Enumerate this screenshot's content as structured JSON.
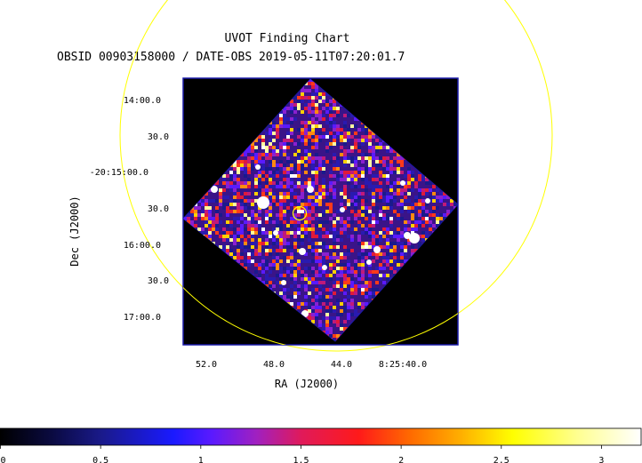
{
  "header": {
    "title": "UVOT Finding Chart",
    "subtitle": "OBSID 00903158000 / DATE-OBS 2019-05-11T07:20:01.7"
  },
  "axes": {
    "ra_label": "RA (J2000)",
    "dec_label": "Dec (J2000)",
    "ra_ticks": [
      "52.0",
      "48.0",
      "44.0",
      "8:25:40.0"
    ],
    "dec_ticks": [
      "14:00.0",
      "30.0",
      "-20:15:00.0",
      "30.0",
      "16:00.0",
      "30.0",
      "17:00.0"
    ]
  },
  "colorbar": {
    "ticks": [
      "0",
      "0.5",
      "1",
      "1.5",
      "2",
      "2.5",
      "3"
    ],
    "range": [
      0,
      3.2
    ]
  },
  "colors": {
    "field_border": "#1a1aa8",
    "overlay_circle": "#ffff00",
    "image_background": "#000000"
  },
  "image": {
    "description_icon": "uvot-image"
  }
}
